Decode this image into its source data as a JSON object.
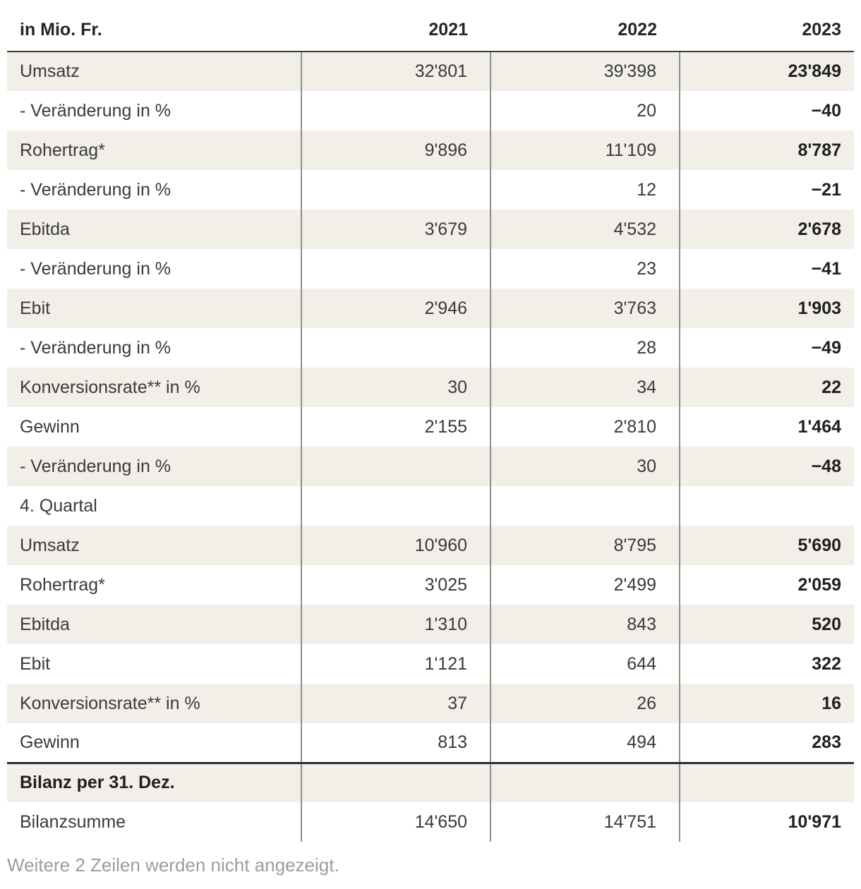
{
  "chart_data": {
    "type": "table",
    "unit_label": "in Mio. Fr.",
    "columns": [
      "2021",
      "2022",
      "2023"
    ],
    "rows": [
      {
        "label": "Umsatz",
        "values": [
          "32'801",
          "39'398",
          "23'849"
        ]
      },
      {
        "label": "- Veränderung in %",
        "values": [
          "",
          "20",
          "−40"
        ]
      },
      {
        "label": "Rohertrag*",
        "values": [
          "9'896",
          "11'109",
          "8'787"
        ]
      },
      {
        "label": "- Veränderung in %",
        "values": [
          "",
          "12",
          "−21"
        ]
      },
      {
        "label": "Ebitda",
        "values": [
          "3'679",
          "4'532",
          "2'678"
        ]
      },
      {
        "label": "- Veränderung in %",
        "values": [
          "",
          "23",
          "−41"
        ]
      },
      {
        "label": "Ebit",
        "values": [
          "2'946",
          "3'763",
          "1'903"
        ]
      },
      {
        "label": "- Veränderung in %",
        "values": [
          "",
          "28",
          "−49"
        ]
      },
      {
        "label": "Konversionsrate** in %",
        "values": [
          "30",
          "34",
          "22"
        ]
      },
      {
        "label": "Gewinn",
        "values": [
          "2'155",
          "2'810",
          "1'464"
        ]
      },
      {
        "label": "- Veränderung in %",
        "values": [
          "",
          "30",
          "−48"
        ]
      },
      {
        "label": "4. Quartal",
        "values": [
          "",
          "",
          ""
        ]
      },
      {
        "label": "Umsatz",
        "values": [
          "10'960",
          "8'795",
          "5'690"
        ]
      },
      {
        "label": "Rohertrag*",
        "values": [
          "3'025",
          "2'499",
          "2'059"
        ]
      },
      {
        "label": "Ebitda",
        "values": [
          "1'310",
          "843",
          "520"
        ]
      },
      {
        "label": "Ebit",
        "values": [
          "1'121",
          "644",
          "322"
        ]
      },
      {
        "label": "Konversionsrate** in %",
        "values": [
          "37",
          "26",
          "16"
        ]
      },
      {
        "label": "Gewinn",
        "values": [
          "813",
          "494",
          "283"
        ]
      },
      {
        "label": "Bilanz per 31. Dez.",
        "values": [
          "",
          "",
          ""
        ],
        "section": true
      },
      {
        "label": "Bilanzsumme",
        "values": [
          "14'650",
          "14'751",
          "10'971"
        ]
      }
    ],
    "note": "Weitere 2 Zeilen werden nicht angezeigt.",
    "colors": {
      "row_shade": "#f1efe8",
      "column_separator": "#8f8f89",
      "header_rule": "#3c3c3c",
      "section_rule": "#2e2e2e",
      "note_text": "#9c9c9c"
    },
    "layout": {
      "grid": "vertical separators between value columns, alternating row shading, bold last column"
    }
  }
}
